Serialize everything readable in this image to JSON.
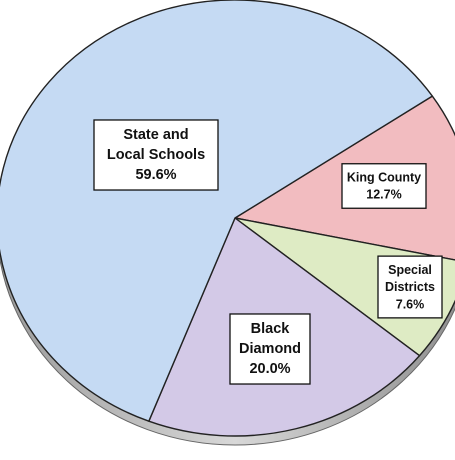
{
  "chart_data": {
    "type": "pie",
    "categories": [
      "State and Local Schools",
      "King County",
      "Special Districts",
      "Black Diamond"
    ],
    "values": [
      59.6,
      12.7,
      7.6,
      20.0
    ],
    "value_labels": [
      "59.6%",
      "12.7%",
      "7.6%",
      "20.0%"
    ],
    "label_lines": [
      [
        "State and",
        "Local Schools"
      ],
      [
        "King County"
      ],
      [
        "Special",
        "Districts"
      ],
      [
        "Black",
        "Diamond"
      ]
    ],
    "colors": [
      "#c5daf3",
      "#f2bcc0",
      "#deebc4",
      "#d3c9e7"
    ],
    "title": "",
    "legend": "none",
    "style": "3d-pie"
  }
}
